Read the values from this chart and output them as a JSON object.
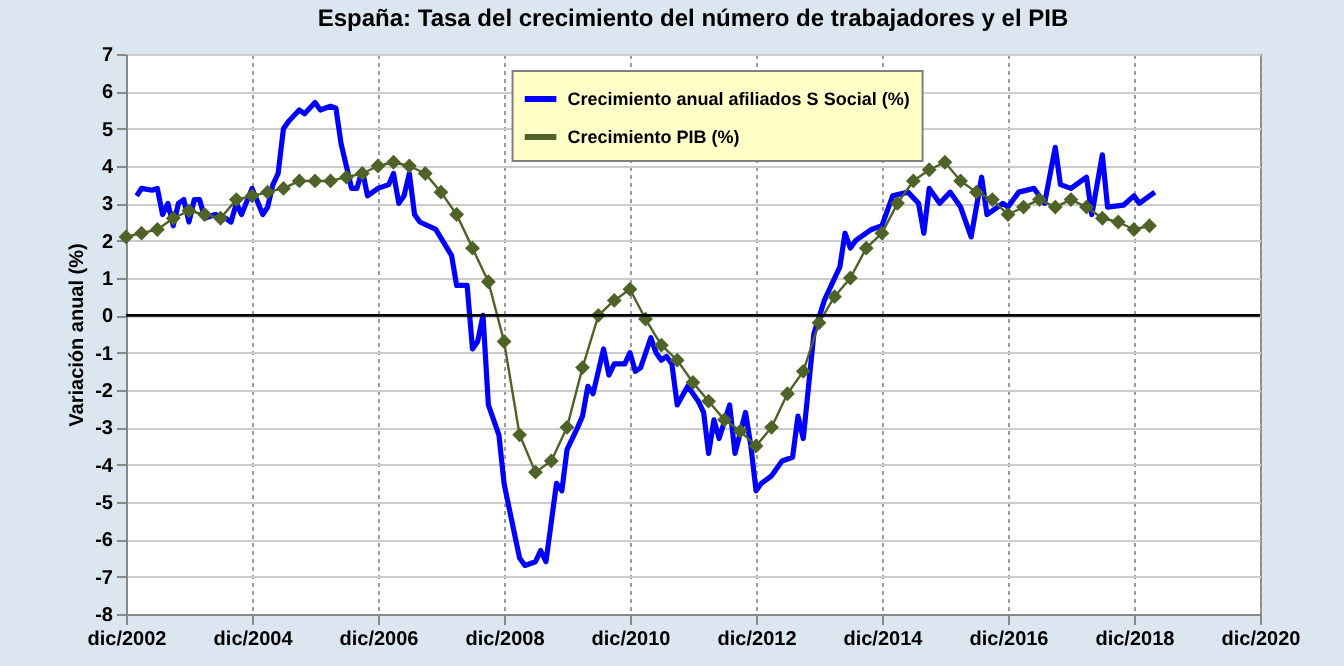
{
  "chart_data": {
    "type": "line",
    "title": "España: Tasa del crecimiento del número de trabajadores y el PIB",
    "ylabel": "Variación anual (%)",
    "xlim": [
      "2002-12",
      "2020-12"
    ],
    "xticks": [
      {
        "value": "2002-12",
        "label": "dic/2002"
      },
      {
        "value": "2004-12",
        "label": "dic/2004"
      },
      {
        "value": "2006-12",
        "label": "dic/2006"
      },
      {
        "value": "2008-12",
        "label": "dic/2008"
      },
      {
        "value": "2010-12",
        "label": "dic/2010"
      },
      {
        "value": "2012-12",
        "label": "dic/2012"
      },
      {
        "value": "2014-12",
        "label": "dic/2014"
      },
      {
        "value": "2016-12",
        "label": "dic/2016"
      },
      {
        "value": "2018-12",
        "label": "dic/2018"
      },
      {
        "value": "2020-12",
        "label": "dic/2020"
      }
    ],
    "ylim": [
      -8,
      7
    ],
    "yticks": [
      -8,
      -7,
      -6,
      -5,
      -4,
      -3,
      -2,
      -1,
      0,
      1,
      2,
      3,
      4,
      5,
      6,
      7
    ],
    "grid": true,
    "legend": "top",
    "ref_lines": [
      {
        "axis": "y",
        "value": 0,
        "color": "#000000"
      }
    ],
    "series": [
      {
        "name": "Crecimiento anual afiliados S Social (%)",
        "type": "line",
        "color": "#0000ff",
        "marker": "none",
        "x": [
          "2003-02",
          "2003-03",
          "2003-05",
          "2003-06",
          "2003-07",
          "2003-08",
          "2003-09",
          "2003-10",
          "2003-11",
          "2003-12",
          "2004-01",
          "2004-02",
          "2004-03",
          "2004-05",
          "2004-07",
          "2004-08",
          "2004-09",
          "2004-10",
          "2004-12",
          "2005-02",
          "2005-03",
          "2005-04",
          "2005-05",
          "2005-06",
          "2005-07",
          "2005-09",
          "2005-10",
          "2005-12",
          "2006-01",
          "2006-03",
          "2006-04",
          "2006-05",
          "2006-07",
          "2006-08",
          "2006-09",
          "2006-10",
          "2006-12",
          "2007-02",
          "2007-03",
          "2007-04",
          "2007-05",
          "2007-06",
          "2007-07",
          "2007-08",
          "2007-11",
          "2008-02",
          "2008-03",
          "2008-05",
          "2008-06",
          "2008-07",
          "2008-08",
          "2008-09",
          "2008-11",
          "2008-12",
          "2009-01",
          "2009-03",
          "2009-04",
          "2009-06",
          "2009-07",
          "2009-08",
          "2009-10",
          "2009-11",
          "2009-12",
          "2010-02",
          "2010-03",
          "2010-04",
          "2010-05",
          "2010-07",
          "2010-08",
          "2010-09",
          "2010-11",
          "2010-12",
          "2011-01",
          "2011-02",
          "2011-04",
          "2011-05",
          "2011-06",
          "2011-07",
          "2011-08",
          "2011-09",
          "2011-11",
          "2012-01",
          "2012-02",
          "2012-03",
          "2012-04",
          "2012-05",
          "2012-07",
          "2012-08",
          "2012-10",
          "2012-11",
          "2012-12",
          "2013-01",
          "2013-03",
          "2013-05",
          "2013-07",
          "2013-08",
          "2013-09",
          "2013-11",
          "2014-01",
          "2014-04",
          "2014-05",
          "2014-06",
          "2014-07",
          "2014-10",
          "2014-12",
          "2015-02",
          "2015-05",
          "2015-07",
          "2015-08",
          "2015-09",
          "2015-11",
          "2016-01",
          "2016-03",
          "2016-05",
          "2016-07",
          "2016-08",
          "2016-11",
          "2016-12",
          "2017-02",
          "2017-05",
          "2017-07",
          "2017-09",
          "2017-10",
          "2017-12",
          "2018-03",
          "2018-04",
          "2018-06",
          "2018-07",
          "2018-10",
          "2018-12",
          "2019-01",
          "2019-04"
        ],
        "values": [
          3.2,
          3.4,
          3.35,
          3.4,
          2.7,
          3.0,
          2.4,
          3.0,
          3.1,
          2.5,
          3.1,
          3.1,
          2.6,
          2.7,
          2.6,
          2.5,
          3.0,
          2.7,
          3.4,
          2.7,
          2.9,
          3.5,
          3.8,
          5.0,
          5.2,
          5.5,
          5.4,
          5.7,
          5.5,
          5.6,
          5.55,
          4.6,
          3.4,
          3.4,
          3.9,
          3.2,
          3.4,
          3.5,
          3.8,
          3.0,
          3.2,
          3.8,
          2.7,
          2.5,
          2.3,
          1.6,
          0.8,
          0.8,
          -0.9,
          -0.7,
          0.0,
          -2.4,
          -3.2,
          -4.5,
          -5.2,
          -6.5,
          -6.7,
          -6.6,
          -6.3,
          -6.6,
          -4.5,
          -4.7,
          -3.6,
          -3.0,
          -2.7,
          -1.9,
          -2.1,
          -0.9,
          -1.6,
          -1.3,
          -1.3,
          -1.0,
          -1.5,
          -1.4,
          -0.6,
          -1.0,
          -1.2,
          -1.1,
          -1.3,
          -2.4,
          -1.9,
          -2.3,
          -2.6,
          -3.7,
          -2.8,
          -3.3,
          -2.4,
          -3.7,
          -2.6,
          -3.5,
          -4.7,
          -4.5,
          -4.3,
          -3.9,
          -3.8,
          -2.7,
          -3.3,
          -0.5,
          0.4,
          1.3,
          2.2,
          1.8,
          2.0,
          2.3,
          2.4,
          3.2,
          3.3,
          3.0,
          2.2,
          3.4,
          3.0,
          3.3,
          2.9,
          2.1,
          3.7,
          2.7,
          3.0,
          2.9,
          3.3,
          3.4,
          3.0,
          4.5,
          3.5,
          3.4,
          3.7,
          2.7,
          4.3,
          2.9,
          2.95,
          3.2,
          3.0,
          3.3
        ]
      },
      {
        "name": "Crecimiento PIB (%)",
        "type": "line",
        "color": "#4f6228",
        "marker": "diamond",
        "x": [
          "2002-12",
          "2003-03",
          "2003-06",
          "2003-09",
          "2003-12",
          "2004-03",
          "2004-06",
          "2004-09",
          "2004-12",
          "2005-03",
          "2005-06",
          "2005-09",
          "2005-12",
          "2006-03",
          "2006-06",
          "2006-09",
          "2006-12",
          "2007-03",
          "2007-06",
          "2007-09",
          "2007-12",
          "2008-03",
          "2008-06",
          "2008-09",
          "2008-12",
          "2009-03",
          "2009-06",
          "2009-09",
          "2009-12",
          "2010-03",
          "2010-06",
          "2010-09",
          "2010-12",
          "2011-03",
          "2011-06",
          "2011-09",
          "2011-12",
          "2012-03",
          "2012-06",
          "2012-09",
          "2012-12",
          "2013-03",
          "2013-06",
          "2013-09",
          "2013-12",
          "2014-03",
          "2014-06",
          "2014-09",
          "2014-12",
          "2015-03",
          "2015-06",
          "2015-09",
          "2015-12",
          "2016-03",
          "2016-06",
          "2016-09",
          "2016-12",
          "2017-03",
          "2017-06",
          "2017-09",
          "2017-12",
          "2018-03",
          "2018-06",
          "2018-09",
          "2018-12",
          "2019-03"
        ],
        "values": [
          2.1,
          2.2,
          2.3,
          2.6,
          2.8,
          2.7,
          2.6,
          3.1,
          3.2,
          3.3,
          3.4,
          3.6,
          3.6,
          3.6,
          3.7,
          3.8,
          4.0,
          4.1,
          4.0,
          3.8,
          3.3,
          2.7,
          1.8,
          0.9,
          -0.7,
          -3.2,
          -4.2,
          -3.9,
          -3.0,
          -1.4,
          0.0,
          0.4,
          0.7,
          -0.1,
          -0.8,
          -1.2,
          -1.8,
          -2.3,
          -2.8,
          -3.1,
          -3.5,
          -3.0,
          -2.1,
          -1.5,
          -0.2,
          0.5,
          1.0,
          1.8,
          2.2,
          3.0,
          3.6,
          3.9,
          4.1,
          3.6,
          3.3,
          3.1,
          2.7,
          2.9,
          3.1,
          2.9,
          3.1,
          2.9,
          2.6,
          2.5,
          2.3,
          2.4
        ]
      }
    ]
  }
}
